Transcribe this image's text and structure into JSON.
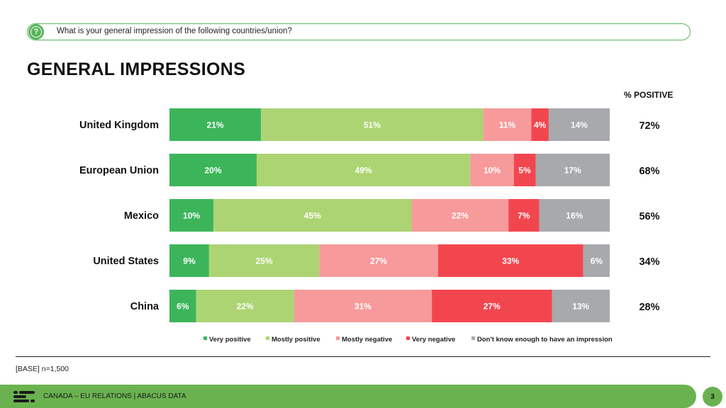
{
  "question": "What is your general impression of the following countries/union?",
  "title": "GENERAL IMPRESSIONS",
  "chart_data": {
    "type": "bar",
    "orientation": "horizontal-stacked",
    "categories": [
      "United Kingdom",
      "European Union",
      "Mexico",
      "United States",
      "China"
    ],
    "series": [
      {
        "name": "Very positive",
        "color": "#3cb55a",
        "values": [
          21,
          20,
          10,
          9,
          6
        ]
      },
      {
        "name": "Mostly positive",
        "color": "#add472",
        "values": [
          51,
          49,
          45,
          25,
          22
        ]
      },
      {
        "name": "Mostly negative",
        "color": "#f79a9b",
        "values": [
          11,
          10,
          22,
          27,
          31
        ]
      },
      {
        "name": "Very negative",
        "color": "#f2464f",
        "values": [
          4,
          5,
          7,
          33,
          27
        ]
      },
      {
        "name": "Don't know enough to have an impression",
        "color": "#a7a9ac",
        "values": [
          14,
          17,
          16,
          6,
          13
        ]
      }
    ],
    "positive_header": "% POSITIVE",
    "positive": [
      "72%",
      "68%",
      "56%",
      "34%",
      "28%"
    ]
  },
  "base": "[BASE] n=1,500",
  "footer": "CANADA – EU RELATIONS  |  ABACUS DATA",
  "page_number": "3"
}
